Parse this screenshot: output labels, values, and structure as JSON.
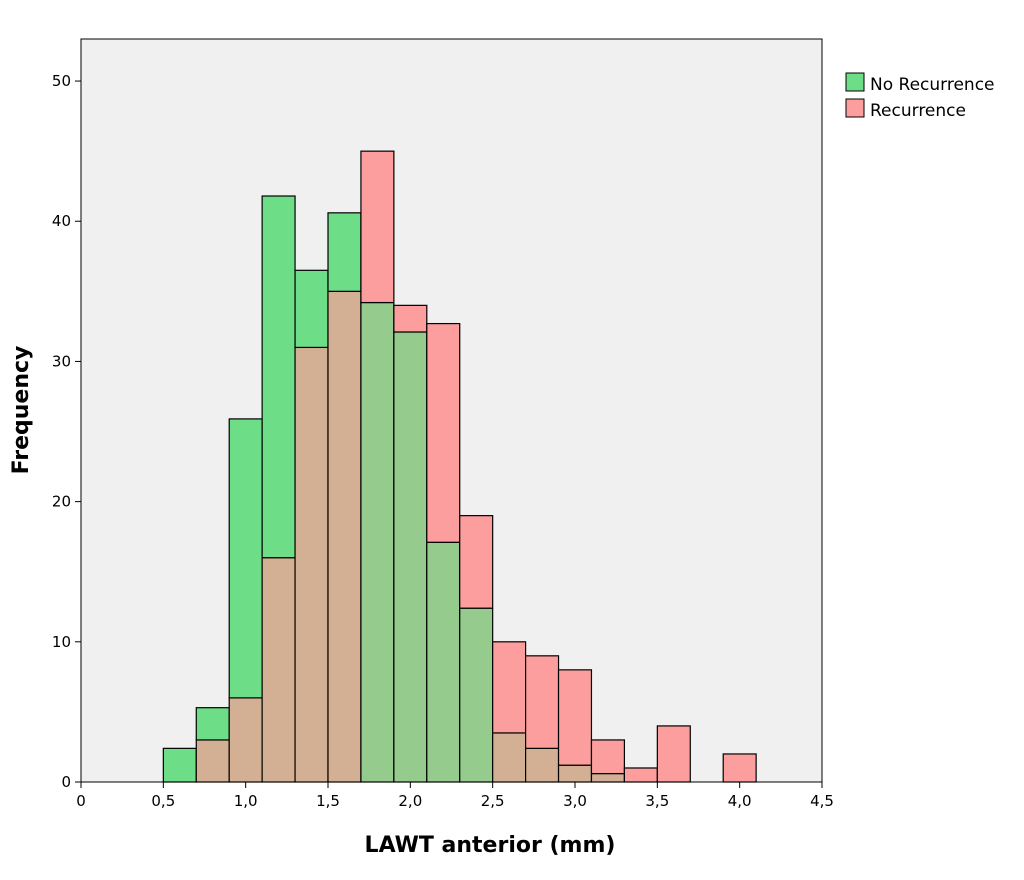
{
  "chart_data": {
    "type": "bar",
    "subtype": "overlaid-histogram",
    "xlabel": "LAWT anterior (mm)",
    "ylabel": "Frequency",
    "xlim": [
      0,
      4.5
    ],
    "ylim": [
      0,
      53
    ],
    "x_ticks": [
      "0",
      "0,5",
      "1,0",
      "1,5",
      "2,0",
      "2,5",
      "3,0",
      "3,5",
      "4,0",
      "4,5"
    ],
    "x_tick_values": [
      0,
      0.5,
      1.0,
      1.5,
      2.0,
      2.5,
      3.0,
      3.5,
      4.0,
      4.5
    ],
    "y_ticks": [
      "0",
      "10",
      "20",
      "30",
      "40",
      "50"
    ],
    "y_tick_values": [
      0,
      10,
      20,
      30,
      40,
      50
    ],
    "grid": false,
    "legend_position": "top-right",
    "bin_width": 0.2,
    "bins_start": [
      0.5,
      0.7,
      0.9,
      1.1,
      1.3,
      1.5,
      1.7,
      1.9,
      2.1,
      2.3,
      2.5,
      2.7,
      2.9,
      3.1,
      3.3,
      3.5,
      3.7,
      3.9
    ],
    "series": [
      {
        "name": "No Recurrence",
        "color": "#6edd87",
        "values": [
          2.4,
          5.3,
          25.9,
          41.8,
          36.5,
          40.6,
          34.2,
          32.1,
          17.1,
          12.4,
          3.5,
          2.4,
          1.2,
          0.6,
          0,
          0,
          0,
          0
        ]
      },
      {
        "name": "Recurrence",
        "color": "#fc9e9e",
        "values": [
          0,
          3,
          6,
          16,
          31,
          35,
          45,
          34,
          32.7,
          19,
          10,
          9,
          8,
          3,
          1,
          4,
          0,
          2
        ]
      }
    ],
    "overlap_color": "#d3b093",
    "overlap_color_alt": "#95cc8e",
    "plot_background": "#f0f0f0"
  }
}
